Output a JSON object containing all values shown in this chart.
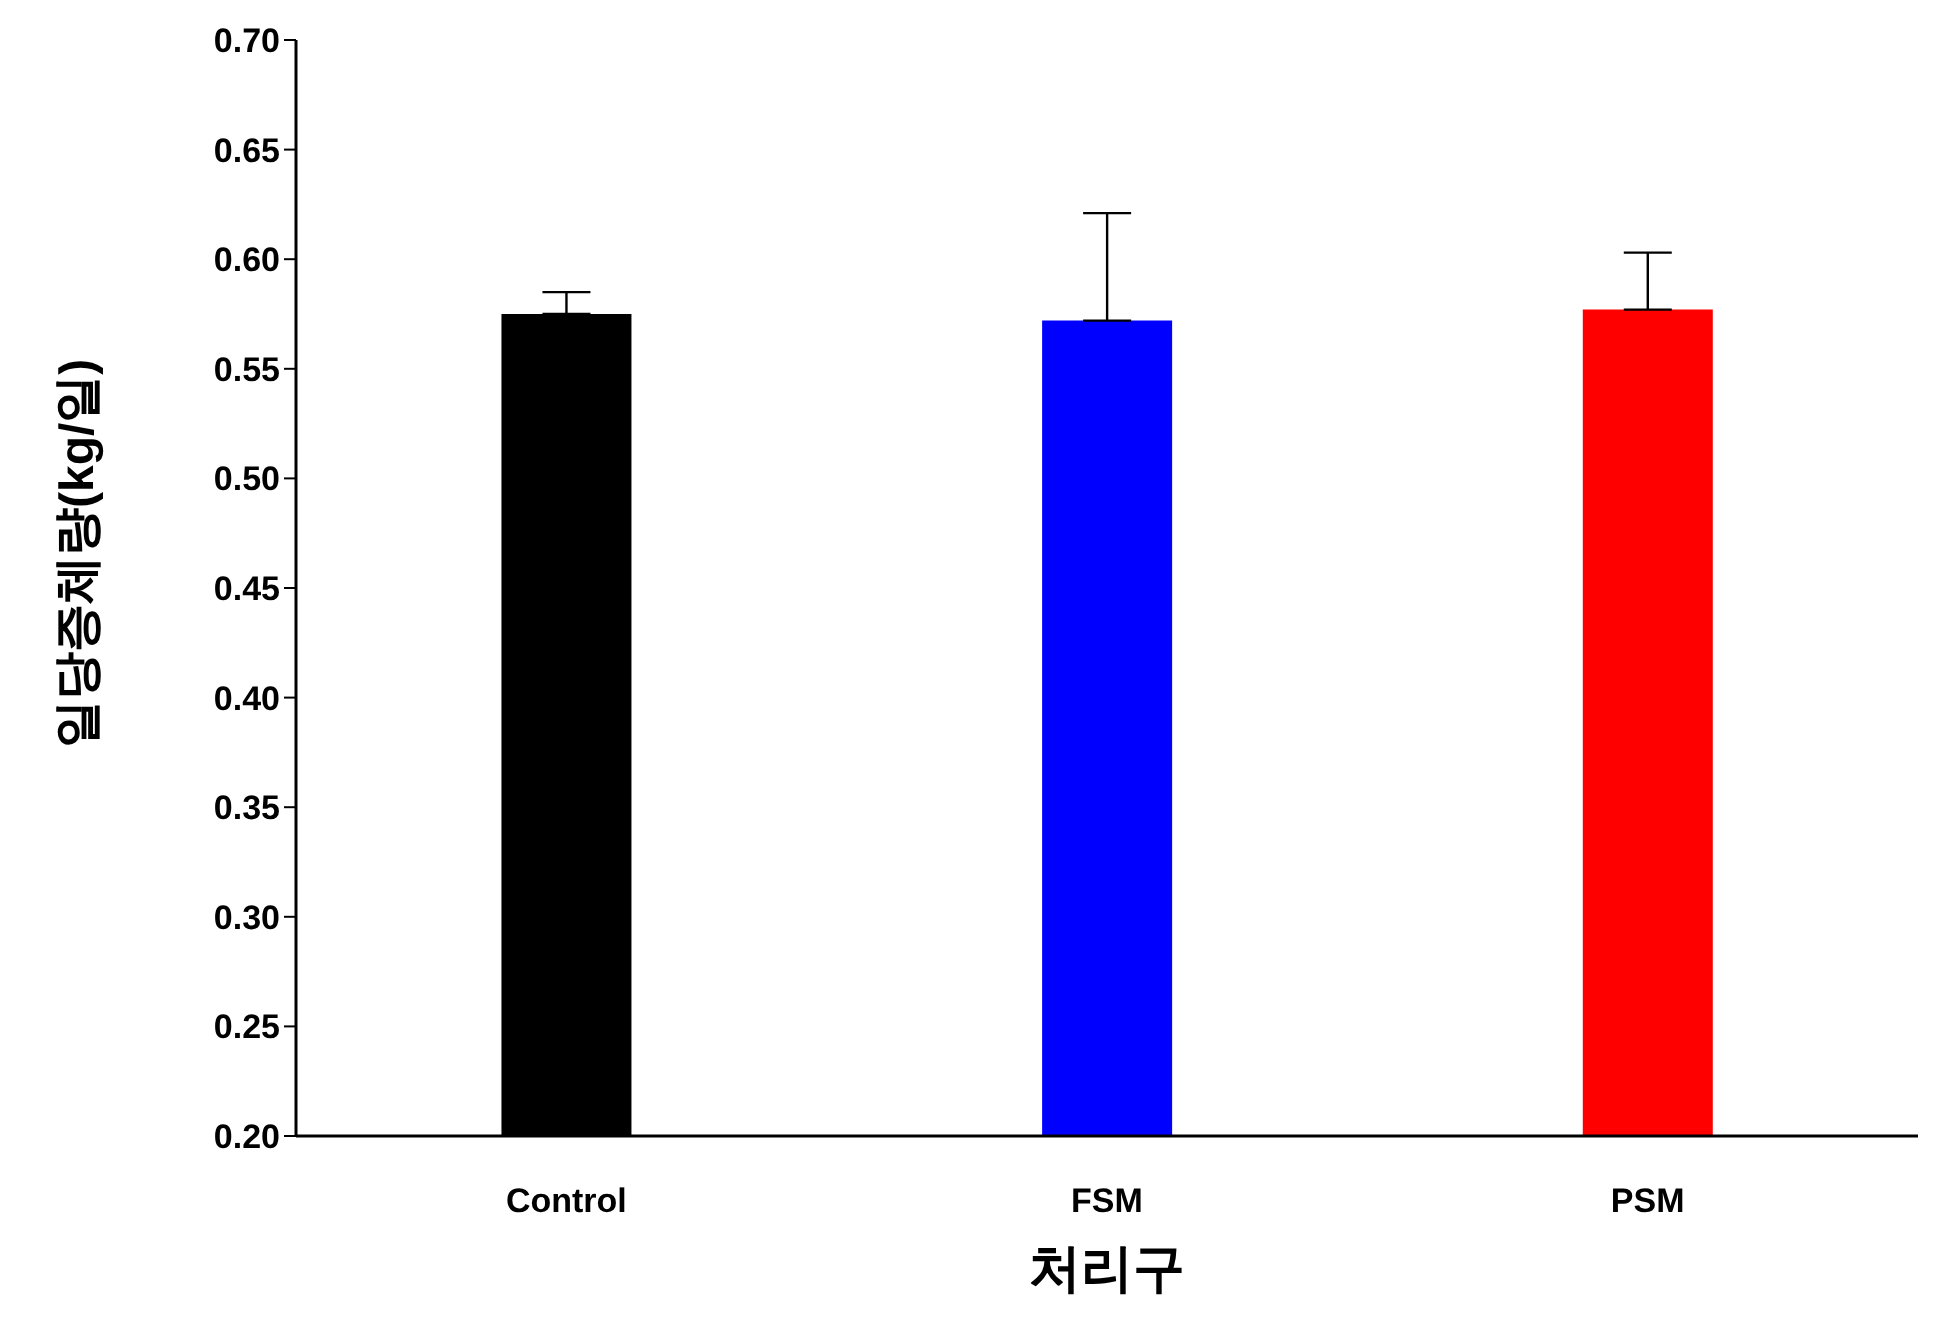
{
  "chart_data": {
    "type": "bar",
    "xlabel": "처리구",
    "ylabel": "일당증체량(kg/일)",
    "categories": [
      "Control",
      "FSM",
      "PSM"
    ],
    "values": [
      0.575,
      0.572,
      0.577
    ],
    "colors": [
      "#000000",
      "#0000ff",
      "#ff0000"
    ],
    "errors": [
      [
        0.575,
        0.585
      ],
      [
        0.572,
        0.621
      ],
      [
        0.577,
        0.603
      ]
    ],
    "ylim": [
      0.2,
      0.7
    ],
    "yticks": [
      {
        "value": 0.2,
        "label": "0.20"
      },
      0.25,
      {
        "value": 0.3,
        "label": "0.30"
      },
      0.35,
      {
        "value": 0.4,
        "label": "0.40"
      },
      0.45,
      {
        "value": 0.5,
        "label": "0.50"
      },
      0.55,
      {
        "value": 0.6,
        "label": "0.60"
      },
      0.65,
      {
        "value": 0.7,
        "label": "0.70"
      }
    ],
    "grid": false,
    "legend": false
  }
}
